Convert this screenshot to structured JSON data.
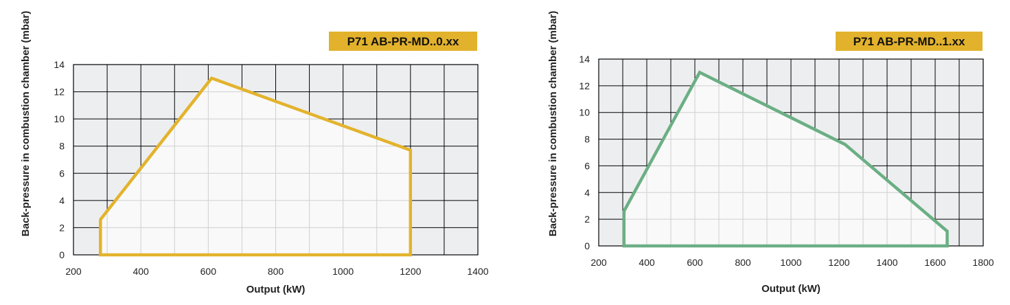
{
  "chart_data": [
    {
      "type": "area",
      "title": "P71 AB-PR-MD..0.xx",
      "xlabel": "Output (kW)",
      "ylabel": "Back-pressure in combustion chamber (mbar)",
      "xlim": [
        200,
        1400
      ],
      "ylim": [
        0,
        14
      ],
      "xticks": [
        200,
        400,
        600,
        800,
        1000,
        1200,
        1400
      ],
      "yticks": [
        0,
        2,
        4,
        6,
        8,
        10,
        12,
        14
      ],
      "grid": true,
      "outline_color": "#E3B32C",
      "outline": [
        {
          "x": 280,
          "y": 0
        },
        {
          "x": 280,
          "y": 2.6
        },
        {
          "x": 610,
          "y": 13.0
        },
        {
          "x": 1200,
          "y": 7.7
        },
        {
          "x": 1200,
          "y": 0
        }
      ]
    },
    {
      "type": "area",
      "title": "P71 AB-PR-MD..1.xx",
      "xlabel": "Output (kW)",
      "ylabel": "Back-pressure in combustion chamber (mbar)",
      "xlim": [
        200,
        1800
      ],
      "ylim": [
        0,
        14
      ],
      "xticks": [
        200,
        400,
        600,
        800,
        1000,
        1200,
        1400,
        1600,
        1800
      ],
      "yticks": [
        0,
        2,
        4,
        6,
        8,
        10,
        12,
        14
      ],
      "grid": true,
      "outline_color": "#6BAF84",
      "outline": [
        {
          "x": 305,
          "y": 0
        },
        {
          "x": 305,
          "y": 2.6
        },
        {
          "x": 620,
          "y": 13.0
        },
        {
          "x": 1225,
          "y": 7.6
        },
        {
          "x": 1650,
          "y": 1.1
        },
        {
          "x": 1650,
          "y": 0
        }
      ]
    }
  ],
  "colors": {
    "grid_bg": "#EDEEF0",
    "grid_line": "#000000",
    "region_fill": "#F9F9F9",
    "region_grid": "#CFCFCF",
    "badge_bg": "#E2B22C"
  }
}
